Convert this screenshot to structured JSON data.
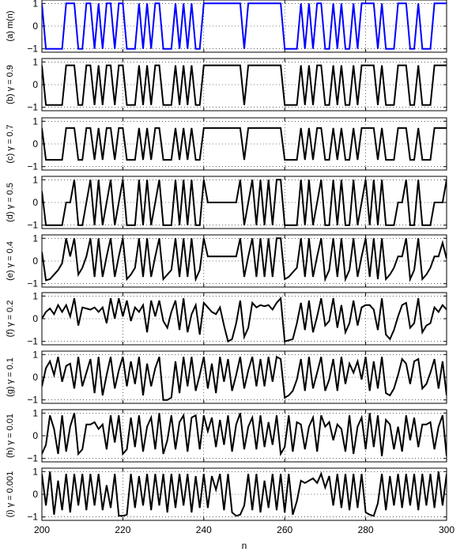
{
  "chart_data": {
    "type": "line",
    "xlabel": "n",
    "xlim": [
      200,
      300
    ],
    "ylim": [
      -1.15,
      1.15
    ],
    "x_ticks": [
      200,
      220,
      240,
      260,
      280,
      300
    ],
    "y_ticks": [
      -1,
      0,
      1
    ],
    "grid": "dotted",
    "x": [
      200,
      201,
      202,
      203,
      204,
      205,
      206,
      207,
      208,
      209,
      210,
      211,
      212,
      213,
      214,
      215,
      216,
      217,
      218,
      219,
      220,
      221,
      222,
      223,
      224,
      225,
      226,
      227,
      228,
      229,
      230,
      231,
      232,
      233,
      234,
      235,
      236,
      237,
      238,
      239,
      240,
      241,
      242,
      243,
      244,
      245,
      246,
      247,
      248,
      249,
      250,
      251,
      252,
      253,
      254,
      255,
      256,
      257,
      258,
      259,
      260,
      261,
      262,
      263,
      264,
      265,
      266,
      267,
      268,
      269,
      270,
      271,
      272,
      273,
      274,
      275,
      276,
      277,
      278,
      279,
      280,
      281,
      282,
      283,
      284,
      285,
      286,
      287,
      288,
      289,
      290,
      291,
      292,
      293,
      294,
      295,
      296,
      297,
      298,
      299,
      300
    ],
    "panels": [
      {
        "label": "(a) m(n)",
        "color": "#0000ff",
        "values": [
          1,
          -1,
          -1,
          -1,
          -1,
          -1,
          1,
          1,
          1,
          -1,
          -1,
          1,
          1,
          -1,
          1,
          -1,
          1,
          1,
          -1,
          1,
          1,
          -1,
          -1,
          -1,
          1,
          -1,
          1,
          -1,
          1,
          1,
          -1,
          -1,
          -1,
          1,
          -1,
          1,
          -1,
          1,
          -1,
          -1,
          1,
          1,
          1,
          1,
          1,
          1,
          1,
          1,
          1,
          1,
          -1,
          1,
          1,
          1,
          1,
          1,
          1,
          1,
          1,
          1,
          -1,
          -1,
          -1,
          -1,
          1,
          -1,
          1,
          -1,
          1,
          1,
          -1,
          -1,
          1,
          -1,
          1,
          -1,
          -1,
          1,
          -1,
          1,
          1,
          1,
          1,
          -1,
          1,
          -1,
          -1,
          -1,
          1,
          1,
          1,
          -1,
          -1,
          1,
          -1,
          -1,
          -1,
          1,
          1,
          1,
          1
        ]
      },
      {
        "label": "(b) γ = 0.9",
        "color": "#000000",
        "values": [
          0.85,
          -0.9,
          -0.9,
          -0.9,
          -0.9,
          -0.9,
          0.85,
          0.85,
          0.85,
          -0.9,
          -0.9,
          0.85,
          0.85,
          -0.9,
          0.85,
          -0.9,
          0.85,
          0.85,
          -0.9,
          0.85,
          0.85,
          -0.9,
          -0.9,
          -0.9,
          0.85,
          -0.9,
          0.85,
          -0.9,
          0.85,
          0.85,
          -0.9,
          -0.9,
          -0.9,
          0.85,
          -0.9,
          0.85,
          -0.9,
          0.85,
          -0.9,
          -0.9,
          0.85,
          0.85,
          0.85,
          0.85,
          0.85,
          0.85,
          0.85,
          0.85,
          0.85,
          0.85,
          -0.9,
          0.85,
          0.85,
          0.85,
          0.85,
          0.85,
          0.85,
          0.85,
          0.85,
          0.85,
          -0.9,
          -0.9,
          -0.9,
          -0.9,
          0.85,
          -0.9,
          0.85,
          -0.9,
          0.85,
          0.85,
          -0.9,
          -0.9,
          0.85,
          -0.9,
          0.85,
          -0.9,
          -0.9,
          0.85,
          -0.9,
          0.85,
          0.85,
          0.85,
          0.85,
          -0.9,
          0.85,
          -0.9,
          -0.9,
          -0.9,
          0.85,
          0.85,
          0.85,
          -0.9,
          -0.9,
          0.85,
          -0.9,
          -0.9,
          -0.9,
          0.85,
          0.85,
          0.85,
          0.85
        ]
      },
      {
        "label": "(c) γ = 0.7",
        "color": "#000000",
        "values": [
          0.7,
          -0.7,
          -0.7,
          -0.7,
          -0.7,
          -0.7,
          0.7,
          0.7,
          0.7,
          -0.7,
          -0.7,
          0.7,
          0.7,
          -0.7,
          0.7,
          -0.7,
          0.7,
          0.7,
          -0.7,
          0.7,
          0.7,
          -0.7,
          -0.7,
          -0.7,
          0.7,
          -0.7,
          0.7,
          -0.7,
          0.7,
          0.7,
          -0.7,
          -0.7,
          -0.7,
          0.7,
          -0.7,
          0.7,
          -0.7,
          0.7,
          -0.7,
          -0.7,
          0.7,
          0.7,
          0.7,
          0.7,
          0.7,
          0.7,
          0.7,
          0.7,
          0.7,
          0.7,
          -0.7,
          0.7,
          0.7,
          0.7,
          0.7,
          0.7,
          0.7,
          0.7,
          0.7,
          0.7,
          -0.7,
          -0.7,
          -0.7,
          -0.7,
          0.7,
          -0.7,
          0.7,
          -0.7,
          0.7,
          0.7,
          -0.7,
          -0.7,
          0.7,
          -0.7,
          0.7,
          -0.7,
          -0.7,
          0.7,
          -0.7,
          0.7,
          0.7,
          0.7,
          0.7,
          -0.7,
          0.7,
          -0.7,
          -0.7,
          -0.7,
          0.7,
          0.7,
          0.7,
          -0.7,
          -0.7,
          0.7,
          -0.7,
          -0.7,
          -0.7,
          0.7,
          0.7,
          0.7,
          0.7
        ]
      },
      {
        "label": "(d) γ = 0.5",
        "color": "#000000",
        "values": [
          0.5,
          -1,
          -1,
          -1,
          -1,
          -1,
          0,
          0,
          1,
          -1,
          -1,
          0,
          1,
          -1,
          1,
          -1,
          0,
          1,
          -1,
          0,
          1,
          -1,
          -1,
          -1,
          1,
          -1,
          1,
          -1,
          0,
          1,
          -1,
          -1,
          -1,
          1,
          -1,
          1,
          -1,
          1,
          -1,
          -1,
          1,
          0,
          0,
          0,
          0,
          0,
          0,
          0,
          0,
          1,
          -1,
          0,
          1,
          -1,
          1,
          -1,
          1,
          -1,
          1,
          1,
          -1,
          -1,
          -1,
          -1,
          1,
          -1,
          1,
          -1,
          0,
          1,
          -1,
          -1,
          1,
          -1,
          1,
          -1,
          -1,
          1,
          -1,
          0,
          1,
          -1,
          1,
          -1,
          1,
          -1,
          -1,
          -1,
          0,
          0,
          1,
          -1,
          -1,
          1,
          -1,
          -1,
          -1,
          0,
          0,
          0,
          1
        ]
      },
      {
        "label": "(e) γ = 0.4",
        "color": "#000000",
        "values": [
          0.4,
          -0.85,
          -0.8,
          -0.6,
          -0.4,
          -0.1,
          1,
          0.2,
          1,
          -0.6,
          -0.3,
          0.2,
          1,
          -0.7,
          1,
          -0.7,
          0.2,
          1,
          -0.7,
          0.2,
          1,
          -0.8,
          -0.6,
          -0.3,
          1,
          -0.7,
          1,
          -0.7,
          0.2,
          1,
          -0.8,
          -0.6,
          -0.4,
          1,
          -0.7,
          1,
          -0.7,
          1,
          -0.8,
          -0.4,
          1,
          0.2,
          0.2,
          0.2,
          0.2,
          0.2,
          0.2,
          0.2,
          0.2,
          1,
          -0.7,
          0.2,
          1,
          -0.7,
          1,
          -0.7,
          1,
          -0.7,
          1,
          1,
          -0.8,
          -0.7,
          -0.5,
          -0.3,
          1,
          -0.7,
          1,
          -0.7,
          0.2,
          1,
          -0.8,
          -0.4,
          1,
          -0.7,
          1,
          -0.8,
          -0.4,
          1,
          -0.7,
          0.2,
          1,
          -0.7,
          1,
          -0.8,
          1,
          -0.8,
          -0.6,
          -0.3,
          0.2,
          0.2,
          1,
          -0.8,
          -0.4,
          1,
          -0.8,
          -0.6,
          -0.3,
          0.2,
          0.2,
          0.8,
          0.1
        ]
      },
      {
        "label": "(f) γ = 0.2",
        "color": "#000000",
        "values": [
          0,
          0.3,
          0.45,
          0.2,
          0.6,
          0.3,
          0.6,
          0.1,
          0.9,
          -0.3,
          0.5,
          0.45,
          0.4,
          0.5,
          0.3,
          0.5,
          -0.2,
          0.9,
          0,
          0.9,
          0.1,
          0.8,
          -0.1,
          0.5,
          0.3,
          0.6,
          -0.6,
          0.8,
          0.1,
          0.8,
          -0.1,
          -0.4,
          0.3,
          0.8,
          -0.5,
          0.9,
          -0.6,
          0.2,
          0.6,
          -0.7,
          0.7,
          0.5,
          0.3,
          0.2,
          0.5,
          -0.3,
          -1,
          -0.9,
          -0.2,
          0.8,
          -0.8,
          -0.4,
          0.7,
          0.5,
          0.6,
          0.55,
          0.6,
          0.4,
          0.7,
          0.9,
          -1,
          -0.95,
          -0.9,
          -0.2,
          0.7,
          -0.5,
          0.8,
          -0.6,
          0.1,
          0.9,
          -0.3,
          -0.1,
          0.9,
          -0.4,
          0.6,
          -0.6,
          -0.2,
          0.8,
          -0.3,
          0.5,
          0.6,
          0.6,
          0.4,
          -0.5,
          0.9,
          -0.7,
          -0.9,
          -0.5,
          0.1,
          0.6,
          0.7,
          -0.4,
          -0.2,
          0.9,
          -0.6,
          -0.3,
          -0.2,
          0.5,
          0.3,
          0.6,
          0.4
        ]
      },
      {
        "label": "(g) γ = 0.1",
        "color": "#000000",
        "values": [
          -0.4,
          0.4,
          0.7,
          0.1,
          0.9,
          -0.2,
          0.5,
          0.6,
          -0.5,
          0.9,
          -0.4,
          0.2,
          0.8,
          -0.7,
          0.9,
          -0.8,
          0.1,
          0.9,
          -0.5,
          0.3,
          0.9,
          -0.4,
          0.7,
          -0.3,
          0.9,
          -0.8,
          0.6,
          -0.4,
          0.4,
          0.9,
          -1,
          -1,
          -0.9,
          0.7,
          -0.7,
          0.9,
          -0.4,
          0.9,
          -0.6,
          0.1,
          0.9,
          -0.5,
          0.6,
          -0.7,
          0.9,
          -0.2,
          0.8,
          -0.6,
          0.1,
          0.9,
          -0.5,
          0.3,
          0.9,
          -0.4,
          0.8,
          -0.4,
          0.9,
          -0.2,
          0.9,
          0.8,
          -0.9,
          -0.8,
          -0.6,
          -0.1,
          0.8,
          -0.6,
          0.9,
          -0.5,
          0.2,
          0.9,
          -0.6,
          -0.1,
          0.8,
          -0.6,
          0.9,
          -0.3,
          0.6,
          0.2,
          0.7,
          -0.1,
          0.9,
          -0.6,
          0.7,
          -0.5,
          0.9,
          -0.7,
          -0.8,
          -0.5,
          0.1,
          0.8,
          0.6,
          -0.3,
          0.7,
          0.8,
          -0.5,
          -0.3,
          0.2,
          0.8,
          -0.5,
          0.7,
          -0.8
        ]
      },
      {
        "label": "(h) γ = 0.01",
        "color": "#000000",
        "values": [
          -0.8,
          -0.4,
          0.9,
          0.3,
          -0.8,
          0.9,
          -0.7,
          0.4,
          1,
          -0.8,
          -0.6,
          0.5,
          0.5,
          0.6,
          0.3,
          0.5,
          -0.6,
          0.9,
          -0.3,
          0.9,
          -0.8,
          -0.6,
          0.8,
          -0.5,
          0.9,
          -0.7,
          0.4,
          0.8,
          -0.6,
          1,
          -0.8,
          -0.2,
          0.9,
          -0.6,
          0.6,
          0.9,
          -0.7,
          0.8,
          0.9,
          -0.6,
          0.9,
          0.2,
          0.8,
          -0.5,
          0.7,
          -0.4,
          0.9,
          -0.7,
          0.5,
          1,
          -0.6,
          0.4,
          0.8,
          -0.6,
          0.9,
          -0.5,
          0.6,
          -0.4,
          0.9,
          -0.8,
          -0.5,
          0.9,
          -0.7,
          0.6,
          0.5,
          -0.6,
          0.4,
          0.8,
          -0.7,
          0.9,
          0.4,
          0.6,
          -0.2,
          0.5,
          0.3,
          -0.7,
          0.9,
          -0.8,
          0.4,
          0.8,
          -0.6,
          1,
          -0.5,
          0.9,
          -0.9,
          0.7,
          0.5,
          -0.6,
          0.4,
          -0.7,
          0.9,
          -0.2,
          0.8,
          -0.5,
          0.5,
          0.5,
          0.6,
          -0.6,
          0.4,
          0.9,
          -0.9
        ]
      },
      {
        "label": "(i) γ = 0.001",
        "color": "#000000",
        "values": [
          0.9,
          -0.5,
          1,
          -0.9,
          0.6,
          -0.7,
          0.9,
          -0.8,
          0.9,
          -0.5,
          0.9,
          -0.7,
          0.9,
          -0.5,
          0.9,
          -0.7,
          0.4,
          -0.6,
          0.9,
          -0.95,
          -0.95,
          -0.9,
          0.9,
          -0.6,
          0.8,
          -0.5,
          0.9,
          -0.7,
          0.9,
          -0.5,
          0.9,
          -0.8,
          0.9,
          -0.6,
          0.9,
          -0.5,
          0.9,
          -0.8,
          0.8,
          -0.6,
          0.9,
          -0.6,
          0.8,
          0.2,
          0.9,
          -0.7,
          0.9,
          -0.8,
          -0.95,
          -0.9,
          -0.5,
          0.9,
          -0.7,
          0.9,
          -0.8,
          0.6,
          -0.6,
          0.9,
          -0.7,
          0.9,
          -0.8,
          0.9,
          -0.9,
          -0.3,
          0.6,
          0.5,
          0.6,
          0.7,
          0.5,
          0.9,
          0.3,
          0.8,
          -0.5,
          0.9,
          -0.6,
          0.9,
          -0.7,
          0.9,
          -0.6,
          0.9,
          -0.8,
          -0.9,
          -0.95,
          -0.4,
          0.9,
          -0.7,
          0.8,
          -0.5,
          0.9,
          -0.6,
          0.9,
          -0.5,
          0.9,
          -0.7,
          0.9,
          -0.5,
          0.9,
          -0.6,
          1,
          -0.5,
          0.9
        ]
      }
    ]
  }
}
